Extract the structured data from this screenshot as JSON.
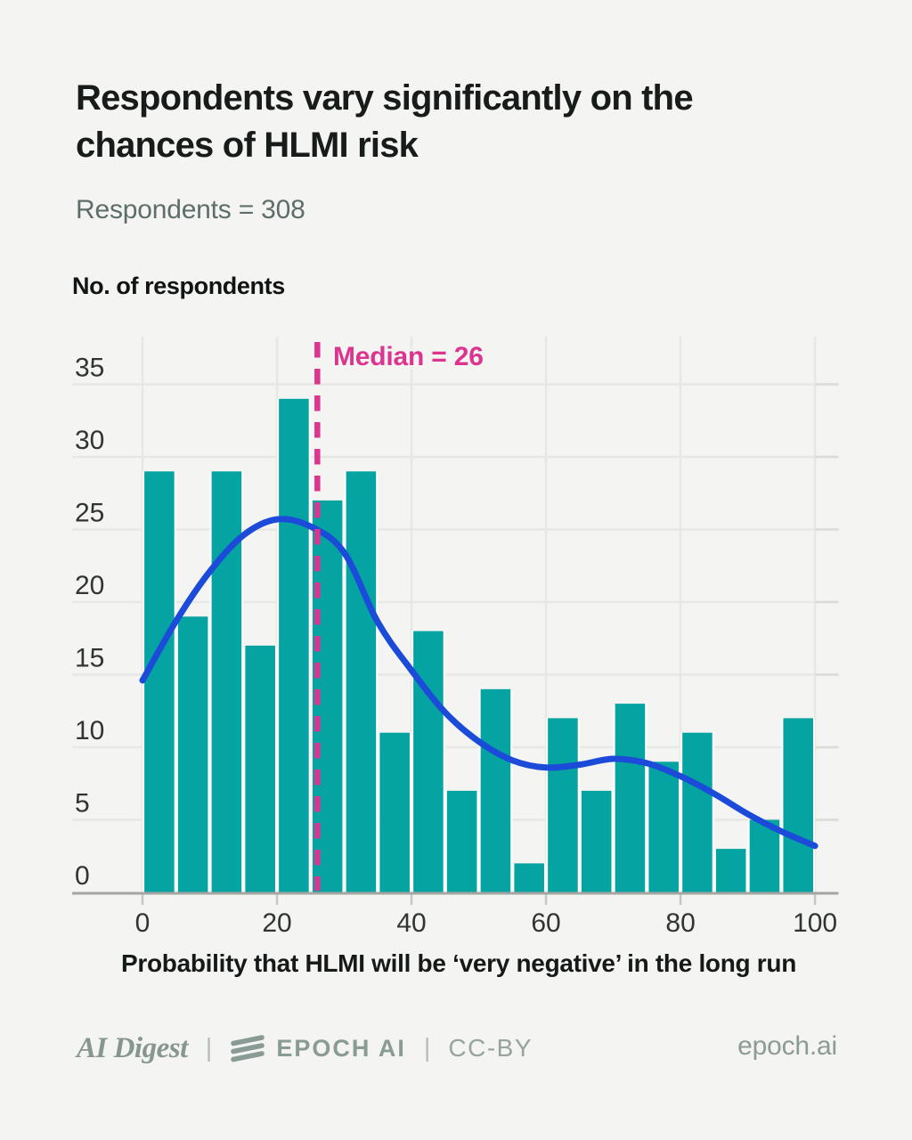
{
  "header": {
    "title_line1": "Respondents vary significantly on the",
    "title_line2": "chances of HLMI risk",
    "subtitle": "Respondents = 308"
  },
  "chart_data": {
    "type": "bar",
    "subtype": "histogram",
    "title": "Respondents vary significantly on the chances of HLMI risk",
    "ylabel": "No. of respondents",
    "xlabel": "Probability that HLMI will be ‘very negative’ in the long run",
    "respondents_total": 308,
    "bin_width": 5,
    "bin_starts": [
      0,
      5,
      10,
      15,
      20,
      25,
      30,
      35,
      40,
      45,
      50,
      55,
      60,
      65,
      70,
      75,
      80,
      85,
      90,
      95
    ],
    "counts": [
      29,
      19,
      29,
      17,
      34,
      27,
      29,
      11,
      18,
      7,
      14,
      2,
      12,
      7,
      13,
      9,
      11,
      3,
      5,
      12
    ],
    "x_ticks": [
      0,
      20,
      40,
      60,
      80,
      100
    ],
    "y_ticks": [
      0,
      5,
      10,
      15,
      20,
      25,
      30,
      35
    ],
    "xlim": [
      0,
      103.5
    ],
    "ylim": [
      0,
      38.3
    ],
    "grid": "on",
    "median": 26,
    "median_label": "Median = 26",
    "kde_curve": {
      "x": [
        0,
        5,
        10,
        15,
        20,
        25,
        30,
        35,
        40,
        45,
        50,
        55,
        60,
        65,
        70,
        75,
        80,
        85,
        90,
        95,
        100
      ],
      "y": [
        14.6,
        18.7,
        22.1,
        24.6,
        25.7,
        25.2,
        23.4,
        18.6,
        15.3,
        12.4,
        10.4,
        9.1,
        8.6,
        8.8,
        9.2,
        8.9,
        8.0,
        6.8,
        5.4,
        4.2,
        3.2
      ]
    },
    "colors": {
      "bar": "#05A3A2",
      "bar_gap": "#FFFFFF",
      "curve": "#1B4BD8",
      "median": "#DC3590",
      "grid": "#E7E7E4",
      "grid_edge": "#DBDBD8",
      "axis_line": "#A5A5A2",
      "tick_mark": "#C7C7C4",
      "tick_text": "#303433",
      "background": "#F4F4F2"
    }
  },
  "footer": {
    "ai_digest": "AI Digest",
    "separator": "|",
    "epoch_logo_icon": "epoch-ai-logo",
    "epoch_ai": "EPOCH AI",
    "license": "CC-BY",
    "website": "epoch.ai"
  }
}
